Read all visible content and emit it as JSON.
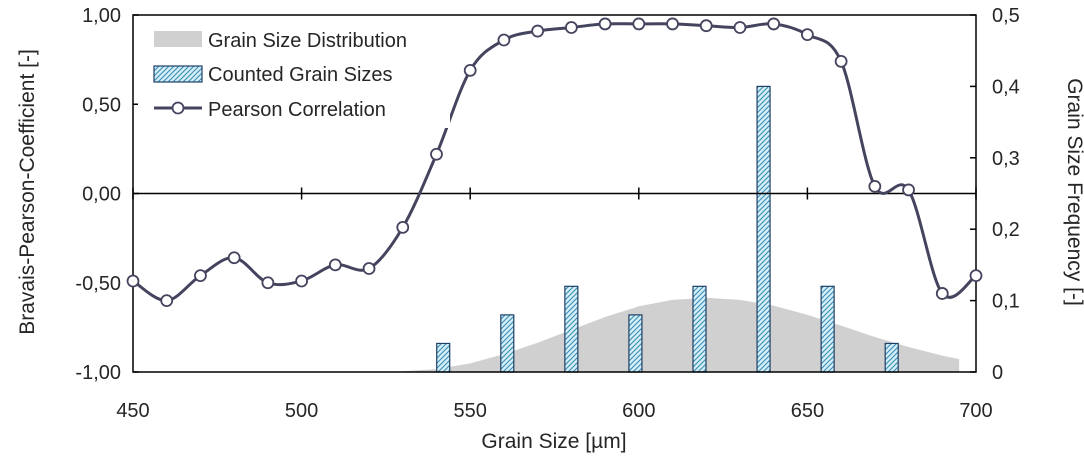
{
  "chart_data": {
    "type": "combo",
    "x_axis": {
      "label": "Grain Size [µm]",
      "range": [
        450,
        700
      ],
      "ticks": [
        450,
        500,
        550,
        600,
        650,
        700
      ],
      "tick_labels": [
        "450",
        "500",
        "550",
        "600",
        "650",
        "700"
      ]
    },
    "y_left": {
      "label": "Bravais-Pearson-Coefficient [-]",
      "range": [
        -1.0,
        1.0
      ],
      "ticks": [
        -1.0,
        -0.5,
        0.0,
        0.5,
        1.0
      ],
      "tick_labels": [
        "-1,00",
        "-0,50",
        "0,00",
        "0,50",
        "1,00"
      ]
    },
    "y_right": {
      "label": "Grain Size  Frequency [-]",
      "range": [
        0,
        0.5
      ],
      "ticks": [
        0,
        0.1,
        0.2,
        0.3,
        0.4,
        0.5
      ],
      "tick_labels": [
        "0",
        "0,1",
        "0,2",
        "0,3",
        "0,4",
        "0,5"
      ]
    },
    "legend": {
      "placement": "top-left",
      "entries": [
        "Grain Size Distribution",
        "Counted Grain Sizes",
        "Pearson Correlation"
      ]
    },
    "series": [
      {
        "name": "Grain Size Distribution",
        "type": "area",
        "axis": "right",
        "color": "#d0d0d0",
        "x": [
          530,
          540,
          550,
          560,
          570,
          580,
          590,
          600,
          610,
          620,
          630,
          640,
          650,
          660,
          670,
          680,
          690,
          695
        ],
        "values": [
          0.001,
          0.004,
          0.012,
          0.025,
          0.041,
          0.059,
          0.077,
          0.092,
          0.101,
          0.104,
          0.101,
          0.093,
          0.08,
          0.065,
          0.049,
          0.035,
          0.023,
          0.018
        ]
      },
      {
        "name": "Counted Grain Sizes",
        "type": "bar",
        "axis": "right",
        "color": "#bfe3f2",
        "x": [
          542,
          561,
          580,
          599,
          618,
          637,
          656,
          675
        ],
        "values": [
          0.04,
          0.08,
          0.12,
          0.08,
          0.12,
          0.4,
          0.12,
          0.04
        ]
      },
      {
        "name": "Pearson Correlation",
        "type": "line",
        "axis": "left",
        "color": "#44445f",
        "x": [
          450,
          460,
          470,
          480,
          490,
          500,
          510,
          520,
          530,
          540,
          550,
          560,
          570,
          580,
          590,
          600,
          610,
          620,
          630,
          640,
          650,
          660,
          670,
          680,
          690,
          700
        ],
        "values": [
          -0.49,
          -0.6,
          -0.46,
          -0.36,
          -0.5,
          -0.49,
          -0.4,
          -0.42,
          -0.19,
          0.22,
          0.69,
          0.86,
          0.91,
          0.93,
          0.95,
          0.95,
          0.95,
          0.94,
          0.93,
          0.95,
          0.89,
          0.74,
          0.04,
          0.02,
          -0.56,
          -0.46
        ]
      }
    ]
  }
}
